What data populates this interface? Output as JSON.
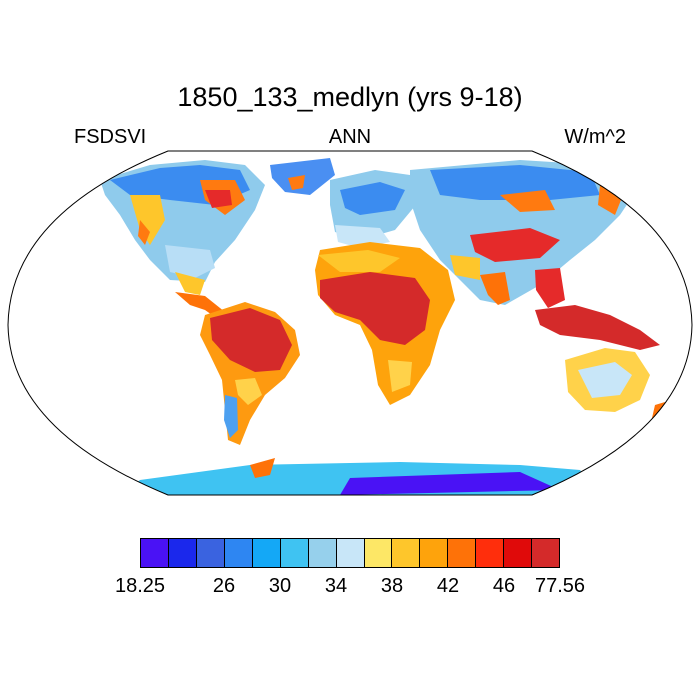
{
  "title": "1850_133_medlyn (yrs 9-18)",
  "left_label": "FSDSVI",
  "center_label": "ANN",
  "right_label": "W/m^2",
  "colorbar": {
    "colors": [
      "#4a12f5",
      "#1b28ec",
      "#3a63e0",
      "#2e86f2",
      "#14a8f6",
      "#3fc3f2",
      "#96d0ec",
      "#c8e6f8",
      "#fde766",
      "#fec62b",
      "#fea30c",
      "#fe7208",
      "#ff2e0c",
      "#e00a0a",
      "#d42a2a"
    ],
    "tick_labels": [
      "18.25",
      "26",
      "30",
      "34",
      "38",
      "42",
      "46",
      "77.56"
    ]
  }
}
